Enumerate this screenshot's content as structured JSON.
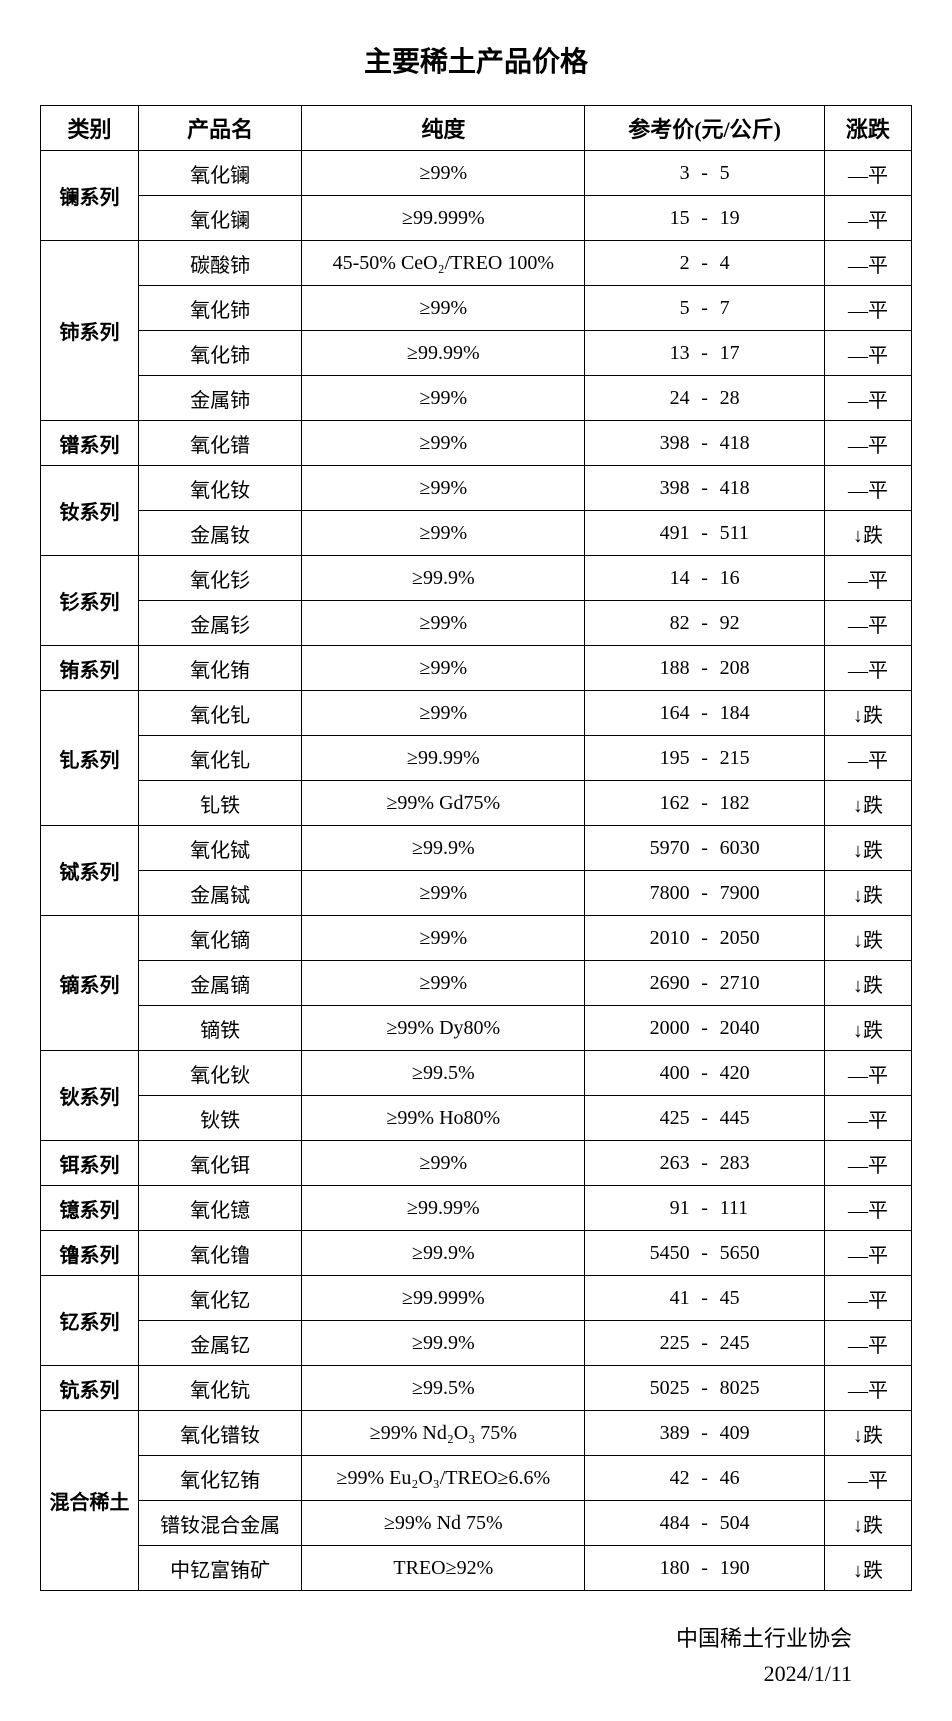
{
  "title": "主要稀土产品价格",
  "columns": [
    "类别",
    "产品名",
    "纯度",
    "参考价(元/公斤)",
    "涨跌"
  ],
  "footer_org": "中国稀土行业协会",
  "footer_date": "2024/1/11",
  "trend_flat": "—平",
  "trend_down": "↓跌",
  "categories": [
    {
      "name": "镧系列",
      "rows": [
        {
          "product": "氧化镧",
          "purity": "≥99%",
          "low": "3",
          "high": "5",
          "trend": "flat"
        },
        {
          "product": "氧化镧",
          "purity": "≥99.999%",
          "low": "15",
          "high": "19",
          "trend": "flat"
        }
      ]
    },
    {
      "name": "铈系列",
      "rows": [
        {
          "product": "碳酸铈",
          "purity": "45-50% CeO₂/TREO 100%",
          "low": "2",
          "high": "4",
          "trend": "flat"
        },
        {
          "product": "氧化铈",
          "purity": "≥99%",
          "low": "5",
          "high": "7",
          "trend": "flat"
        },
        {
          "product": "氧化铈",
          "purity": "≥99.99%",
          "low": "13",
          "high": "17",
          "trend": "flat"
        },
        {
          "product": "金属铈",
          "purity": "≥99%",
          "low": "24",
          "high": "28",
          "trend": "flat"
        }
      ]
    },
    {
      "name": "镨系列",
      "rows": [
        {
          "product": "氧化镨",
          "purity": "≥99%",
          "low": "398",
          "high": "418",
          "trend": "flat"
        }
      ]
    },
    {
      "name": "钕系列",
      "rows": [
        {
          "product": "氧化钕",
          "purity": "≥99%",
          "low": "398",
          "high": "418",
          "trend": "flat"
        },
        {
          "product": "金属钕",
          "purity": "≥99%",
          "low": "491",
          "high": "511",
          "trend": "down"
        }
      ]
    },
    {
      "name": "钐系列",
      "rows": [
        {
          "product": "氧化钐",
          "purity": "≥99.9%",
          "low": "14",
          "high": "16",
          "trend": "flat"
        },
        {
          "product": "金属钐",
          "purity": "≥99%",
          "low": "82",
          "high": "92",
          "trend": "flat"
        }
      ]
    },
    {
      "name": "铕系列",
      "rows": [
        {
          "product": "氧化铕",
          "purity": "≥99%",
          "low": "188",
          "high": "208",
          "trend": "flat"
        }
      ]
    },
    {
      "name": "钆系列",
      "rows": [
        {
          "product": "氧化钆",
          "purity": "≥99%",
          "low": "164",
          "high": "184",
          "trend": "down"
        },
        {
          "product": "氧化钆",
          "purity": "≥99.99%",
          "low": "195",
          "high": "215",
          "trend": "flat"
        },
        {
          "product": "钆铁",
          "purity": "≥99% Gd75%",
          "low": "162",
          "high": "182",
          "trend": "down"
        }
      ]
    },
    {
      "name": "铽系列",
      "rows": [
        {
          "product": "氧化铽",
          "purity": "≥99.9%",
          "low": "5970",
          "high": "6030",
          "trend": "down"
        },
        {
          "product": "金属铽",
          "purity": "≥99%",
          "low": "7800",
          "high": "7900",
          "trend": "down"
        }
      ]
    },
    {
      "name": "镝系列",
      "rows": [
        {
          "product": "氧化镝",
          "purity": "≥99%",
          "low": "2010",
          "high": "2050",
          "trend": "down"
        },
        {
          "product": "金属镝",
          "purity": "≥99%",
          "low": "2690",
          "high": "2710",
          "trend": "down"
        },
        {
          "product": "镝铁",
          "purity": "≥99% Dy80%",
          "low": "2000",
          "high": "2040",
          "trend": "down"
        }
      ]
    },
    {
      "name": "钬系列",
      "rows": [
        {
          "product": "氧化钬",
          "purity": "≥99.5%",
          "low": "400",
          "high": "420",
          "trend": "flat"
        },
        {
          "product": "钬铁",
          "purity": "≥99% Ho80%",
          "low": "425",
          "high": "445",
          "trend": "flat"
        }
      ]
    },
    {
      "name": "铒系列",
      "rows": [
        {
          "product": "氧化铒",
          "purity": "≥99%",
          "low": "263",
          "high": "283",
          "trend": "flat"
        }
      ]
    },
    {
      "name": "镱系列",
      "rows": [
        {
          "product": "氧化镱",
          "purity": "≥99.99%",
          "low": "91",
          "high": "111",
          "trend": "flat"
        }
      ]
    },
    {
      "name": "镥系列",
      "rows": [
        {
          "product": "氧化镥",
          "purity": "≥99.9%",
          "low": "5450",
          "high": "5650",
          "trend": "flat"
        }
      ]
    },
    {
      "name": "钇系列",
      "rows": [
        {
          "product": "氧化钇",
          "purity": "≥99.999%",
          "low": "41",
          "high": "45",
          "trend": "flat"
        },
        {
          "product": "金属钇",
          "purity": "≥99.9%",
          "low": "225",
          "high": "245",
          "trend": "flat"
        }
      ]
    },
    {
      "name": "钪系列",
      "rows": [
        {
          "product": "氧化钪",
          "purity": "≥99.5%",
          "low": "5025",
          "high": "8025",
          "trend": "flat"
        }
      ]
    },
    {
      "name": "混合稀土",
      "rows": [
        {
          "product": "氧化镨钕",
          "purity": "≥99%  Nd₂O₃ 75%",
          "low": "389",
          "high": "409",
          "trend": "down"
        },
        {
          "product": "氧化钇铕",
          "purity": "≥99% Eu₂O₃/TREO≥6.6%",
          "low": "42",
          "high": "46",
          "trend": "flat"
        },
        {
          "product": "镨钕混合金属",
          "purity": "≥99% Nd 75%",
          "low": "484",
          "high": "504",
          "trend": "down"
        },
        {
          "product": "中钇富铕矿",
          "purity": "TREO≥92%",
          "low": "180",
          "high": "190",
          "trend": "down"
        }
      ]
    }
  ]
}
